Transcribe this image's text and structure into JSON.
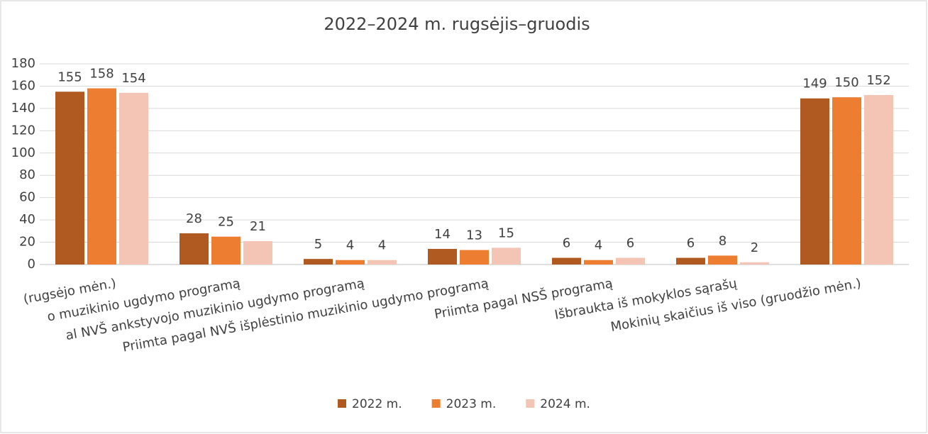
{
  "chart_data": {
    "type": "bar",
    "title": "2022–2024 m. rugsėjis–gruodis",
    "categories": [
      "(rugsėjo mėn.)",
      "o muzikinio ugdymo programą",
      "al NVŠ ankstyvojo muzikinio ugdymo programą",
      "Priimta  pagal NVŠ išplėstinio muzikinio ugdymo programą",
      "Priimta pagal NSŠ programą",
      "Išbraukta iš mokyklos sąrašų",
      "Mokinių skaičius iš viso (gruodžio mėn.)"
    ],
    "series": [
      {
        "name": "2022 m.",
        "color": "#b05a22",
        "values": [
          155,
          28,
          5,
          14,
          6,
          6,
          149
        ]
      },
      {
        "name": "2023 m.",
        "color": "#ed7d31",
        "values": [
          158,
          25,
          4,
          13,
          4,
          8,
          150
        ]
      },
      {
        "name": "2024 m.",
        "color": "#f4c4b5",
        "values": [
          154,
          21,
          4,
          15,
          6,
          2,
          152
        ]
      }
    ],
    "ylim": [
      0,
      180
    ],
    "yticks": [
      0,
      20,
      40,
      60,
      80,
      100,
      120,
      140,
      160,
      180
    ],
    "grid": true,
    "legend": "bottom"
  }
}
